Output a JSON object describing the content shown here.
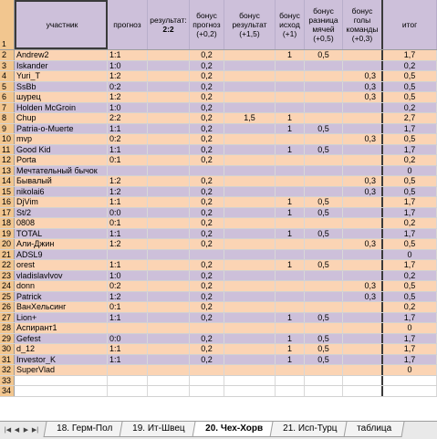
{
  "header": {
    "row_number": "1",
    "c1": "участник",
    "c2": "прогноз",
    "c3_line1": "результат:",
    "c3_line2": "2:2",
    "c4_line1": "бонус",
    "c4_line2": "прогноз",
    "c4_line3": "(+0,2)",
    "c5_line1": "бонус",
    "c5_line2": "результат",
    "c5_line3": "(+1,5)",
    "c6_line1": "бонус",
    "c6_line2": "исход",
    "c6_line3": "(+1)",
    "c7_line1": "бонус",
    "c7_line2": "разница",
    "c7_line3": "мячей",
    "c7_line4": "(+0,5)",
    "c8_line1": "бонус",
    "c8_line2": "голы",
    "c8_line3": "команды",
    "c8_line4": "(+0,3)",
    "c9": "итог"
  },
  "rows": [
    {
      "n": "2",
      "name": "Andrew2",
      "p": "1:1",
      "b02": "0,2",
      "b15": "",
      "b1": "1",
      "b05": "0,5",
      "b03": "",
      "t": "1,7"
    },
    {
      "n": "3",
      "name": "Iskander",
      "p": "1:0",
      "b02": "0,2",
      "b15": "",
      "b1": "",
      "b05": "",
      "b03": "",
      "t": "0,2"
    },
    {
      "n": "4",
      "name": "Yuri_T",
      "p": "1:2",
      "b02": "0,2",
      "b15": "",
      "b1": "",
      "b05": "",
      "b03": "0,3",
      "t": "0,5"
    },
    {
      "n": "5",
      "name": "SsBb",
      "p": "0:2",
      "b02": "0,2",
      "b15": "",
      "b1": "",
      "b05": "",
      "b03": "0,3",
      "t": "0,5"
    },
    {
      "n": "6",
      "name": "шурец",
      "p": "1:2",
      "b02": "0,2",
      "b15": "",
      "b1": "",
      "b05": "",
      "b03": "0,3",
      "t": "0,5"
    },
    {
      "n": "7",
      "name": "Holden McGroin",
      "p": "1:0",
      "b02": "0,2",
      "b15": "",
      "b1": "",
      "b05": "",
      "b03": "",
      "t": "0,2"
    },
    {
      "n": "8",
      "name": "Chup",
      "p": "2:2",
      "b02": "0,2",
      "b15": "1,5",
      "b1": "1",
      "b05": "",
      "b03": "",
      "t": "2,7"
    },
    {
      "n": "9",
      "name": "Patria-o-Muerte",
      "p": "1:1",
      "b02": "0,2",
      "b15": "",
      "b1": "1",
      "b05": "0,5",
      "b03": "",
      "t": "1,7"
    },
    {
      "n": "10",
      "name": "mvp",
      "p": "0:2",
      "b02": "0,2",
      "b15": "",
      "b1": "",
      "b05": "",
      "b03": "0,3",
      "t": "0,5"
    },
    {
      "n": "11",
      "name": "Good Kid",
      "p": "1:1",
      "b02": "0,2",
      "b15": "",
      "b1": "1",
      "b05": "0,5",
      "b03": "",
      "t": "1,7"
    },
    {
      "n": "12",
      "name": "Porta",
      "p": "0:1",
      "b02": "0,2",
      "b15": "",
      "b1": "",
      "b05": "",
      "b03": "",
      "t": "0,2"
    },
    {
      "n": "13",
      "name": "Мечтательный бычок",
      "p": "",
      "b02": "",
      "b15": "",
      "b1": "",
      "b05": "",
      "b03": "",
      "t": "0"
    },
    {
      "n": "14",
      "name": "Бывалый",
      "p": "1:2",
      "b02": "0,2",
      "b15": "",
      "b1": "",
      "b05": "",
      "b03": "0,3",
      "t": "0,5"
    },
    {
      "n": "15",
      "name": "nikolai6",
      "p": "1:2",
      "b02": "0,2",
      "b15": "",
      "b1": "",
      "b05": "",
      "b03": "0,3",
      "t": "0,5"
    },
    {
      "n": "16",
      "name": "DjVim",
      "p": "1:1",
      "b02": "0,2",
      "b15": "",
      "b1": "1",
      "b05": "0,5",
      "b03": "",
      "t": "1,7"
    },
    {
      "n": "17",
      "name": "St/2",
      "p": "0:0",
      "b02": "0,2",
      "b15": "",
      "b1": "1",
      "b05": "0,5",
      "b03": "",
      "t": "1,7"
    },
    {
      "n": "18",
      "name": "0808",
      "p": "0:1",
      "b02": "0,2",
      "b15": "",
      "b1": "",
      "b05": "",
      "b03": "",
      "t": "0,2"
    },
    {
      "n": "19",
      "name": "TOTAL",
      "p": "1:1",
      "b02": "0,2",
      "b15": "",
      "b1": "1",
      "b05": "0,5",
      "b03": "",
      "t": "1,7"
    },
    {
      "n": "20",
      "name": "Али-Джин",
      "p": "1:2",
      "b02": "0,2",
      "b15": "",
      "b1": "",
      "b05": "",
      "b03": "0,3",
      "t": "0,5"
    },
    {
      "n": "21",
      "name": "ADSL9",
      "p": "",
      "b02": "",
      "b15": "",
      "b1": "",
      "b05": "",
      "b03": "",
      "t": "0"
    },
    {
      "n": "22",
      "name": "orest",
      "p": "1:1",
      "b02": "0,2",
      "b15": "",
      "b1": "1",
      "b05": "0,5",
      "b03": "",
      "t": "1,7"
    },
    {
      "n": "23",
      "name": "vladislavlvov",
      "p": "1:0",
      "b02": "0,2",
      "b15": "",
      "b1": "",
      "b05": "",
      "b03": "",
      "t": "0,2"
    },
    {
      "n": "24",
      "name": "donn",
      "p": "0:2",
      "b02": "0,2",
      "b15": "",
      "b1": "",
      "b05": "",
      "b03": "0,3",
      "t": "0,5"
    },
    {
      "n": "25",
      "name": "Patrick",
      "p": "1:2",
      "b02": "0,2",
      "b15": "",
      "b1": "",
      "b05": "",
      "b03": "0,3",
      "t": "0,5"
    },
    {
      "n": "26",
      "name": "ВанХельсинг",
      "p": "0:1",
      "b02": "0,2",
      "b15": "",
      "b1": "",
      "b05": "",
      "b03": "",
      "t": "0,2"
    },
    {
      "n": "27",
      "name": "Lion+",
      "p": "1:1",
      "b02": "0,2",
      "b15": "",
      "b1": "1",
      "b05": "0,5",
      "b03": "",
      "t": "1,7"
    },
    {
      "n": "28",
      "name": "Аспирант1",
      "p": "",
      "b02": "",
      "b15": "",
      "b1": "",
      "b05": "",
      "b03": "",
      "t": "0"
    },
    {
      "n": "29",
      "name": "Gefest",
      "p": "0:0",
      "b02": "0,2",
      "b15": "",
      "b1": "1",
      "b05": "0,5",
      "b03": "",
      "t": "1,7"
    },
    {
      "n": "30",
      "name": "d_12",
      "p": "1:1",
      "b02": "0,2",
      "b15": "",
      "b1": "1",
      "b05": "0,5",
      "b03": "",
      "t": "1,7"
    },
    {
      "n": "31",
      "name": "Investor_K",
      "p": "1:1",
      "b02": "0,2",
      "b15": "",
      "b1": "1",
      "b05": "0,5",
      "b03": "",
      "t": "1,7"
    },
    {
      "n": "32",
      "name": "SuperVlad",
      "p": "",
      "b02": "",
      "b15": "",
      "b1": "",
      "b05": "",
      "b03": "",
      "t": "0"
    }
  ],
  "blank_rows": [
    "33",
    "34"
  ],
  "tabs": [
    {
      "label": "18. Герм-Пол",
      "active": false
    },
    {
      "label": "19. Ит-Швец",
      "active": false
    },
    {
      "label": "20. Чех-Хорв",
      "active": true
    },
    {
      "label": "21. Исп-Турц",
      "active": false
    },
    {
      "label": "таблица",
      "active": false
    }
  ],
  "nav_icons": [
    "first-sheet-icon",
    "prev-sheet-icon",
    "next-sheet-icon",
    "last-sheet-icon"
  ]
}
